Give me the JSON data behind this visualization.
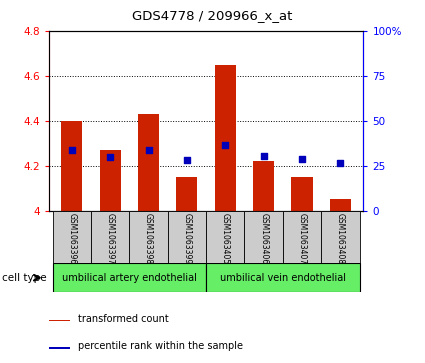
{
  "title": "GDS4778 / 209966_x_at",
  "samples": [
    "GSM1063396",
    "GSM1063397",
    "GSM1063398",
    "GSM1063399",
    "GSM1063405",
    "GSM1063406",
    "GSM1063407",
    "GSM1063408"
  ],
  "bar_values": [
    4.4,
    4.27,
    4.43,
    4.15,
    4.65,
    4.22,
    4.15,
    4.05
  ],
  "bar_base": 4.0,
  "percentile_values": [
    4.27,
    4.24,
    4.27,
    4.225,
    4.29,
    4.245,
    4.23,
    4.21
  ],
  "ylim_left": [
    4.0,
    4.8
  ],
  "ylim_right": [
    0,
    100
  ],
  "yticks_left": [
    4.0,
    4.2,
    4.4,
    4.6,
    4.8
  ],
  "yticks_right": [
    0,
    25,
    50,
    75,
    100
  ],
  "ytick_labels_right": [
    "0",
    "25",
    "50",
    "75",
    "100%"
  ],
  "ytick_labels_left": [
    "4",
    "4.2",
    "4.4",
    "4.6",
    "4.8"
  ],
  "bar_color": "#cc2200",
  "dot_color": "#0000bb",
  "cell_types": [
    "umbilical artery endothelial",
    "umbilical vein endothelial"
  ],
  "cell_type_green": "#66ee66",
  "sample_bg_color": "#cccccc",
  "legend_bar_label": "transformed count",
  "legend_dot_label": "percentile rank within the sample",
  "cell_type_label": "cell type"
}
